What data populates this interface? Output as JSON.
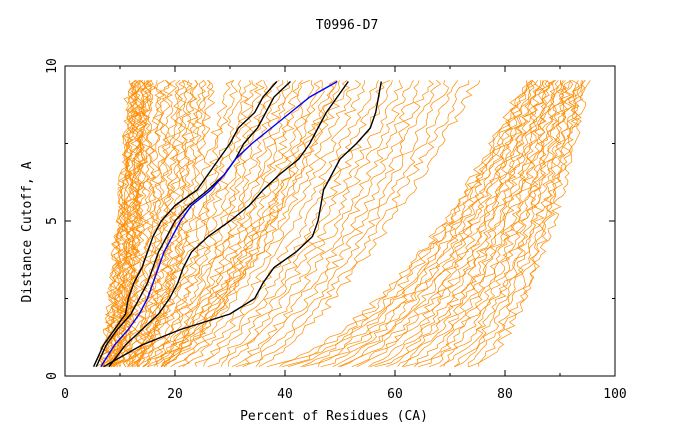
{
  "chart_data": {
    "type": "line",
    "title": "T0996-D7",
    "xlabel": "Percent of Residues (CA)",
    "ylabel": "Distance Cutoff, A",
    "xlim": [
      0,
      100
    ],
    "ylim": [
      0,
      10
    ],
    "x_ticks": [
      0,
      20,
      40,
      60,
      80,
      100
    ],
    "y_ticks": [
      0,
      5,
      10
    ],
    "grid": false,
    "legend": "none",
    "colors": {
      "background_series": "#ff8c00",
      "highlight_black": "#000000",
      "highlight_blue": "#0000ff",
      "axis": "#000000"
    },
    "y_grid": [
      0.3,
      1,
      1.5,
      2,
      2.5,
      3,
      3.5,
      4,
      4.5,
      5,
      5.5,
      6,
      6.5,
      7,
      7.5,
      8,
      8.5,
      9,
      9.5
    ],
    "series": [
      {
        "color": "black",
        "x": [
          5.2,
          7,
          9,
          11,
          11.5,
          12.5,
          14,
          15,
          16,
          17.5,
          20,
          24,
          26,
          28,
          30,
          31.5,
          34.5,
          36,
          38.5
        ]
      },
      {
        "color": "black",
        "x": [
          5.7,
          7.5,
          9.5,
          12,
          13.5,
          15,
          16,
          17,
          18.5,
          20,
          22.5,
          26,
          29,
          31,
          32.5,
          35,
          36.5,
          38,
          41
        ]
      },
      {
        "color": "blue",
        "x": [
          6.5,
          9,
          11.5,
          13.5,
          15,
          16,
          17,
          18,
          19.5,
          21,
          23,
          26.5,
          29,
          31,
          34,
          37.5,
          41,
          44.5,
          49.5
        ]
      },
      {
        "color": "black",
        "x": [
          7,
          14,
          21,
          30,
          34.5,
          36,
          38,
          42,
          45,
          46,
          46.5,
          47,
          48.5,
          50,
          53,
          55.5,
          56.5,
          57,
          57.5
        ]
      },
      {
        "color": "black",
        "x": [
          8,
          11,
          14,
          17,
          19,
          20.5,
          21.5,
          23,
          26,
          30,
          33.5,
          36,
          39,
          42.5,
          44.5,
          46,
          47.5,
          49.5,
          51.5
        ]
      }
    ]
  }
}
